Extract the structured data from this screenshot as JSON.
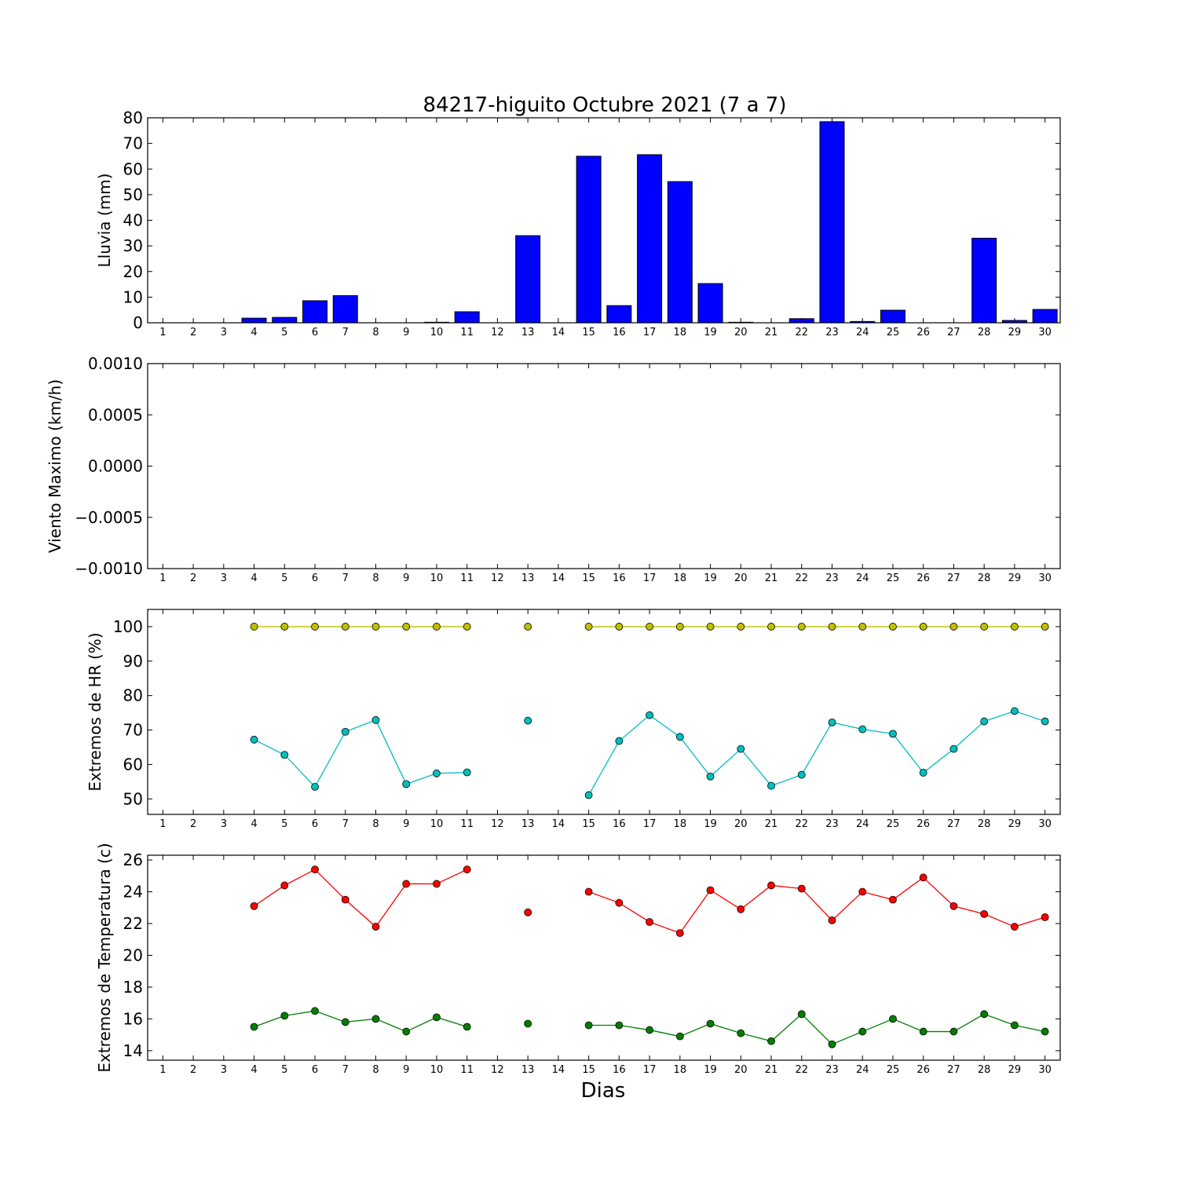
{
  "figure": {
    "title": "84217-higuito Octubre 2021  (7 a 7)",
    "xlabel": "Dias"
  },
  "chart_data": [
    {
      "type": "bar",
      "ylabel": "Lluvia (mm)",
      "ylim": [
        0,
        80
      ],
      "yticks": [
        "0",
        "10",
        "20",
        "30",
        "40",
        "50",
        "60",
        "70",
        "80"
      ],
      "xlim": [
        0.5,
        30.5
      ],
      "categories": [
        1,
        2,
        3,
        4,
        5,
        6,
        7,
        8,
        9,
        10,
        11,
        12,
        13,
        14,
        15,
        16,
        17,
        18,
        19,
        20,
        21,
        22,
        23,
        24,
        25,
        26,
        27,
        28,
        29,
        30
      ],
      "series": [
        {
          "color": "#0000ff",
          "values": [
            0,
            0,
            0,
            1.8,
            2.1,
            8.6,
            10.6,
            0,
            0,
            0.2,
            4.3,
            0,
            34,
            0,
            65,
            6.7,
            65.6,
            55.1,
            15.3,
            0.2,
            0,
            1.6,
            78.5,
            0.5,
            4.9,
            0,
            0,
            33,
            0.9,
            5.2
          ]
        }
      ]
    },
    {
      "type": "line",
      "ylabel": "Viento Maximo (km/h)",
      "ylim": [
        -0.001,
        0.001
      ],
      "yticks": [
        "−0.0010",
        "−0.0005",
        "0.0000",
        "0.0005",
        "0.0010"
      ],
      "xlim": [
        0.5,
        30.5
      ],
      "x": [
        1,
        2,
        3,
        4,
        5,
        6,
        7,
        8,
        9,
        10,
        11,
        12,
        13,
        14,
        15,
        16,
        17,
        18,
        19,
        20,
        21,
        22,
        23,
        24,
        25,
        26,
        27,
        28,
        29,
        30
      ],
      "series": []
    },
    {
      "type": "line",
      "ylabel": "Extremos de HR (%)",
      "ylim": [
        45.5,
        105
      ],
      "yticks": [
        "50",
        "60",
        "70",
        "80",
        "90",
        "100"
      ],
      "xlim": [
        0.5,
        30.5
      ],
      "x": [
        1,
        2,
        3,
        4,
        5,
        6,
        7,
        8,
        9,
        10,
        11,
        12,
        13,
        14,
        15,
        16,
        17,
        18,
        19,
        20,
        21,
        22,
        23,
        24,
        25,
        26,
        27,
        28,
        29,
        30
      ],
      "series": [
        {
          "color": "#bfbf00",
          "values": [
            null,
            null,
            null,
            100,
            100,
            100,
            100,
            100,
            100,
            100,
            100,
            null,
            100,
            null,
            100,
            100,
            100,
            100,
            100,
            100,
            100,
            100,
            100,
            100,
            100,
            100,
            100,
            100,
            100,
            100
          ]
        },
        {
          "color": "#00bfbf",
          "values": [
            null,
            null,
            null,
            67.2,
            62.8,
            53.5,
            69.5,
            72.9,
            54.3,
            57.4,
            57.7,
            null,
            72.7,
            null,
            51.1,
            66.8,
            74.3,
            68,
            56.5,
            64.5,
            53.8,
            57,
            72.2,
            70.2,
            68.9,
            57.6,
            64.5,
            72.5,
            75.5,
            72.5
          ]
        }
      ]
    },
    {
      "type": "line",
      "ylabel": "Extremos de Temperatura (c)",
      "ylim": [
        13.4,
        26.3
      ],
      "yticks": [
        "14",
        "16",
        "18",
        "20",
        "22",
        "24",
        "26"
      ],
      "xlim": [
        0.5,
        30.5
      ],
      "x": [
        1,
        2,
        3,
        4,
        5,
        6,
        7,
        8,
        9,
        10,
        11,
        12,
        13,
        14,
        15,
        16,
        17,
        18,
        19,
        20,
        21,
        22,
        23,
        24,
        25,
        26,
        27,
        28,
        29,
        30
      ],
      "series": [
        {
          "color": "#ff0000",
          "values": [
            null,
            null,
            null,
            23.1,
            24.4,
            25.4,
            23.5,
            21.8,
            24.5,
            24.5,
            25.4,
            null,
            22.7,
            null,
            24,
            23.3,
            22.1,
            21.4,
            24.1,
            22.9,
            24.4,
            24.2,
            22.2,
            24,
            23.5,
            24.9,
            23.1,
            22.6,
            21.8,
            22.4
          ]
        },
        {
          "color": "#007f00",
          "values": [
            null,
            null,
            null,
            15.5,
            16.2,
            16.5,
            15.8,
            16,
            15.2,
            16.1,
            15.5,
            null,
            15.7,
            null,
            15.6,
            15.6,
            15.3,
            14.9,
            15.7,
            15.1,
            14.6,
            16.3,
            14.4,
            15.2,
            16,
            15.2,
            15.2,
            16.3,
            15.6,
            15.2
          ]
        }
      ]
    }
  ]
}
